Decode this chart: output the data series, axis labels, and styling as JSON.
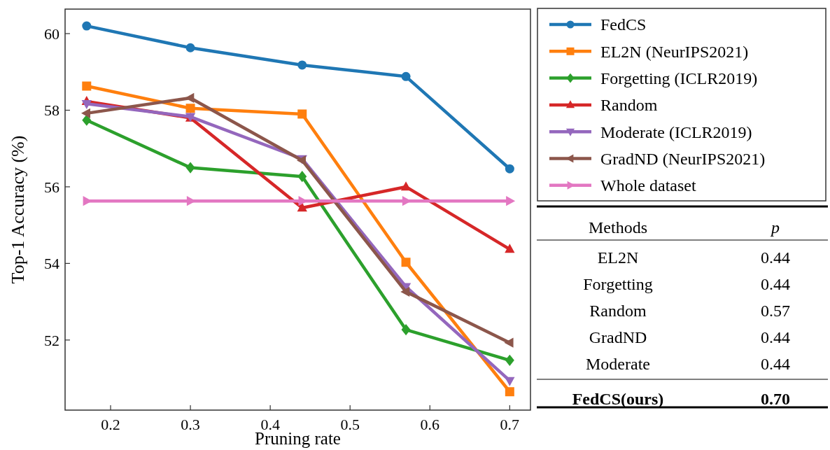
{
  "chart_data": {
    "type": "line",
    "xlabel": "Pruning rate",
    "ylabel": "Top-1 Accuracy (%)",
    "x": [
      0.17,
      0.3,
      0.44,
      0.57,
      0.7
    ],
    "xlim": [
      0.143,
      0.726
    ],
    "xticks": [
      0.2,
      0.3,
      0.4,
      0.5,
      0.6,
      0.7
    ],
    "ylim": [
      50.17,
      60.64
    ],
    "yticks": [
      52,
      54,
      56,
      58,
      60
    ],
    "grid": false,
    "legend": "top right",
    "line_style": "solid",
    "series": [
      {
        "name": "FedCS",
        "color": "#1f77b4",
        "marker": "circle",
        "values": [
          60.2,
          59.63,
          59.18,
          58.88,
          56.47
        ]
      },
      {
        "name": "EL2N (NeurIPS2021)",
        "color": "#ff7f0e",
        "marker": "square",
        "values": [
          58.63,
          58.05,
          57.9,
          54.03,
          50.65
        ]
      },
      {
        "name": "Forgetting (ICLR2019)",
        "color": "#2ca02c",
        "marker": "diamond",
        "values": [
          57.74,
          56.5,
          56.27,
          52.27,
          51.47
        ]
      },
      {
        "name": "Random",
        "color": "#d62728",
        "marker": "triangle",
        "values": [
          58.23,
          57.8,
          55.45,
          56.0,
          54.37
        ]
      },
      {
        "name": "Moderate (ICLR2019)",
        "color": "#9467bd",
        "marker": "triangle-down",
        "values": [
          58.17,
          57.83,
          56.73,
          53.39,
          50.94
        ]
      },
      {
        "name": "GradND (NeurIPS2021)",
        "color": "#8c564b",
        "marker": "triangle-left",
        "values": [
          57.92,
          58.32,
          56.69,
          53.26,
          51.93
        ]
      },
      {
        "name": "Whole dataset",
        "color": "#e377c2",
        "marker": "triangle-right",
        "values": [
          55.63,
          55.63,
          55.63,
          55.63,
          55.63
        ]
      }
    ],
    "annotations": [
      "Methods",
      "p",
      "EL2N",
      "0.44",
      "Forgetting",
      "0.44",
      "Random",
      "0.57",
      "GradND",
      "0.44",
      "Moderate",
      "0.44",
      "FedCS(ours)",
      "0.70"
    ]
  }
}
